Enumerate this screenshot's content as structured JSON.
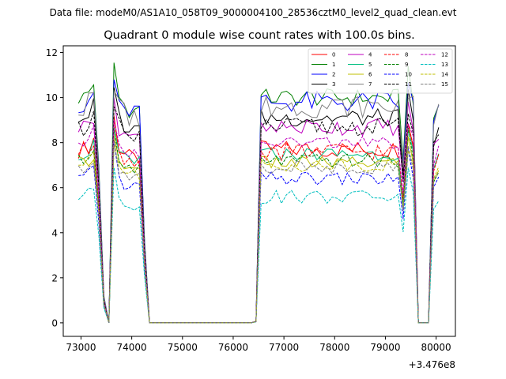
{
  "suptitle": "Data file: modeM0/AS1A10_058T09_9000004100_28536cztM0_level2_quad_clean.evt",
  "chart_data": {
    "type": "line",
    "title": "Quadrant 0 module wise count rates with 100.0s bins.",
    "xlabel": "",
    "ylabel": "",
    "x_offset_label": "+3.476e8",
    "xlim": [
      72650,
      80380
    ],
    "ylim": [
      -0.6,
      12.3
    ],
    "xticks": [
      73000,
      74000,
      75000,
      76000,
      77000,
      78000,
      79000,
      80000
    ],
    "xtick_labels": [
      "73000",
      "74000",
      "75000",
      "76000",
      "77000",
      "78000",
      "79000",
      "80000"
    ],
    "yticks": [
      0,
      2,
      4,
      6,
      8,
      10,
      12
    ],
    "ytick_labels": [
      "0",
      "2",
      "4",
      "6",
      "8",
      "10",
      "12"
    ],
    "legend_position": "top-right",
    "legend_columns": 4,
    "segments": [
      {
        "x_start": 72950,
        "x_end": 74150,
        "step": 100
      },
      {
        "x_start": 76550,
        "x_end": 79350,
        "step": 100
      },
      {
        "x_start": 79550,
        "x_end": 79550,
        "step": 100
      },
      {
        "x_start": 79950,
        "x_end": 80050,
        "step": 100
      }
    ],
    "gaps": [
      {
        "x_start": 74250,
        "x_end": 76450,
        "step": 100
      }
    ],
    "series": [
      {
        "name": "0",
        "color": "#ff0000",
        "dashed": false,
        "level": 7.7,
        "amp": 0.4,
        "peak": 9.2
      },
      {
        "name": "1",
        "color": "#008000",
        "dashed": false,
        "level": 10.0,
        "amp": 0.4,
        "peak": 11.55
      },
      {
        "name": "2",
        "color": "#0000ff",
        "dashed": false,
        "level": 9.8,
        "amp": 0.5,
        "peak": 10.8
      },
      {
        "name": "3",
        "color": "#000000",
        "dashed": false,
        "level": 9.1,
        "amp": 0.4,
        "peak": 10.45
      },
      {
        "name": "4",
        "color": "#bf00bf",
        "dashed": false,
        "level": 8.7,
        "amp": 0.4,
        "peak": 10.0
      },
      {
        "name": "5",
        "color": "#00bf80",
        "dashed": false,
        "level": 7.5,
        "amp": 0.3,
        "peak": 8.6
      },
      {
        "name": "6",
        "color": "#bfbf00",
        "dashed": false,
        "level": 7.1,
        "amp": 0.3,
        "peak": 8.3
      },
      {
        "name": "7",
        "color": "#808080",
        "dashed": false,
        "level": 9.6,
        "amp": 0.5,
        "peak": 10.3
      },
      {
        "name": "8",
        "color": "#ff0000",
        "dashed": true,
        "level": 7.6,
        "amp": 0.4,
        "peak": 9.0
      },
      {
        "name": "9",
        "color": "#008000",
        "dashed": true,
        "level": 7.2,
        "amp": 0.3,
        "peak": 8.7
      },
      {
        "name": "10",
        "color": "#0000ff",
        "dashed": true,
        "level": 6.4,
        "amp": 0.3,
        "peak": 8.0
      },
      {
        "name": "11",
        "color": "#000000",
        "dashed": true,
        "level": 8.7,
        "amp": 0.4,
        "peak": 9.6
      },
      {
        "name": "12",
        "color": "#bf00bf",
        "dashed": true,
        "level": 8.0,
        "amp": 0.3,
        "peak": 9.0
      },
      {
        "name": "13",
        "color": "#00bfbf",
        "dashed": true,
        "level": 5.6,
        "amp": 0.3,
        "peak": 6.9
      },
      {
        "name": "14",
        "color": "#bfbf00",
        "dashed": true,
        "level": 7.0,
        "amp": 0.3,
        "peak": 7.9
      },
      {
        "name": "15",
        "color": "#808080",
        "dashed": true,
        "level": 6.9,
        "amp": 0.3,
        "peak": 8.2
      }
    ]
  }
}
